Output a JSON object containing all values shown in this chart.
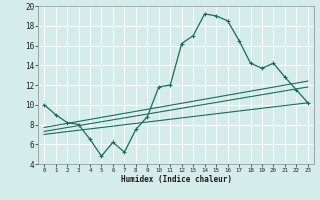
{
  "title": "",
  "xlabel": "Humidex (Indice chaleur)",
  "bg_color": "#d4edea",
  "grid_color": "#ffffff",
  "line_color": "#1a6b5a",
  "xlim": [
    -0.5,
    23.5
  ],
  "ylim": [
    4,
    20
  ],
  "yticks": [
    4,
    6,
    8,
    10,
    12,
    14,
    16,
    18,
    20
  ],
  "xticks": [
    0,
    1,
    2,
    3,
    4,
    5,
    6,
    7,
    8,
    9,
    10,
    11,
    12,
    13,
    14,
    15,
    16,
    17,
    18,
    19,
    20,
    21,
    22,
    23
  ],
  "curve_x": [
    0,
    1,
    2,
    3,
    4,
    5,
    6,
    7,
    8,
    9,
    10,
    11,
    12,
    13,
    14,
    15,
    16,
    17,
    18,
    19,
    20,
    21,
    22,
    23
  ],
  "curve_y": [
    10.0,
    9.0,
    8.2,
    8.0,
    6.5,
    4.8,
    6.2,
    5.2,
    7.5,
    8.8,
    11.8,
    12.0,
    16.2,
    17.0,
    19.2,
    19.0,
    18.5,
    16.5,
    14.2,
    13.7,
    14.2,
    12.8,
    11.5,
    10.2
  ],
  "line1_y": [
    7.0,
    10.2
  ],
  "line2_y": [
    7.3,
    11.8
  ],
  "line3_y": [
    7.7,
    12.4
  ]
}
